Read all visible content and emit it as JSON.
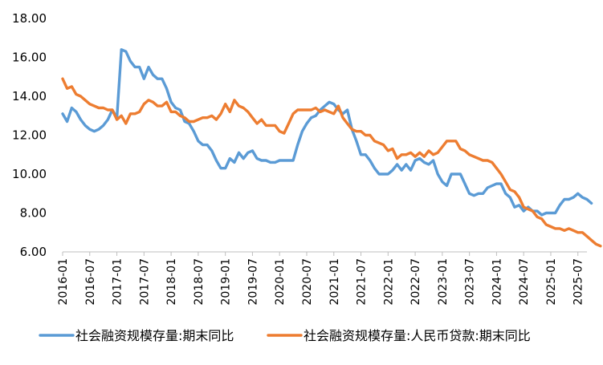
{
  "chart_data": {
    "type": "line",
    "title": "",
    "xlabel": "",
    "ylabel": "",
    "ylim": [
      6,
      18
    ],
    "yticks": [
      "6.00",
      "8.00",
      "10.00",
      "12.00",
      "14.00",
      "16.00",
      "18.00"
    ],
    "x_tick_labels": [
      "2016-01",
      "2016-07",
      "2017-01",
      "2017-07",
      "2018-01",
      "2018-07",
      "2019-01",
      "2019-07",
      "2020-01",
      "2020-07",
      "2021-01",
      "2021-07",
      "2022-01",
      "2022-07",
      "2023-01",
      "2023-07",
      "2024-01",
      "2024-07",
      "2025-01",
      "2025-07"
    ],
    "x_start": "2016-01",
    "x_end": "2025-09",
    "grid": false,
    "legend_position": "bottom",
    "series": [
      {
        "name": "社会融资规模存量:期末同比",
        "color": "#5B9BD5",
        "values": [
          13.1,
          12.7,
          13.4,
          13.2,
          12.8,
          12.5,
          12.3,
          12.2,
          12.3,
          12.5,
          12.8,
          13.3,
          12.9,
          16.4,
          16.3,
          15.8,
          15.5,
          15.5,
          14.9,
          15.5,
          15.1,
          14.9,
          14.9,
          14.4,
          13.7,
          13.4,
          13.3,
          12.7,
          12.6,
          12.2,
          11.7,
          11.5,
          11.5,
          11.2,
          10.7,
          10.3,
          10.3,
          10.8,
          10.6,
          11.1,
          10.8,
          11.1,
          11.2,
          10.8,
          10.7,
          10.7,
          10.6,
          10.6,
          10.7,
          10.7,
          10.7,
          10.7,
          11.5,
          12.2,
          12.6,
          12.9,
          13.0,
          13.3,
          13.5,
          13.7,
          13.6,
          13.3,
          13.1,
          13.3,
          12.3,
          11.7,
          11.0,
          11.0,
          10.7,
          10.3,
          10.0,
          10.0,
          10.0,
          10.2,
          10.5,
          10.2,
          10.5,
          10.2,
          10.7,
          10.8,
          10.6,
          10.5,
          10.7,
          10.0,
          9.6,
          9.4,
          10.0,
          10.0,
          10.0,
          9.5,
          9.0,
          8.9,
          9.0,
          9.0,
          9.3,
          9.4,
          9.5,
          9.5,
          9.0,
          8.8,
          8.3,
          8.4,
          8.1,
          8.3,
          8.1,
          8.1,
          7.9,
          8.0,
          8.0,
          8.0,
          8.4,
          8.7,
          8.7,
          8.8,
          9.0,
          8.8,
          8.7,
          8.5
        ]
      },
      {
        "name": "社会融资规模存量:人民币贷款:期末同比",
        "color": "#ED7D31",
        "values": [
          14.9,
          14.4,
          14.5,
          14.1,
          14.0,
          13.8,
          13.6,
          13.5,
          13.4,
          13.4,
          13.3,
          13.3,
          12.8,
          13.0,
          12.6,
          13.1,
          13.1,
          13.2,
          13.6,
          13.8,
          13.7,
          13.5,
          13.5,
          13.7,
          13.2,
          13.2,
          13.0,
          12.9,
          12.7,
          12.7,
          12.8,
          12.9,
          12.9,
          13.0,
          12.8,
          13.1,
          13.6,
          13.2,
          13.8,
          13.5,
          13.4,
          13.2,
          12.9,
          12.6,
          12.8,
          12.5,
          12.5,
          12.5,
          12.2,
          12.1,
          12.6,
          13.1,
          13.3,
          13.3,
          13.3,
          13.3,
          13.4,
          13.2,
          13.3,
          13.2,
          13.1,
          13.5,
          12.9,
          12.6,
          12.3,
          12.2,
          12.2,
          12.0,
          12.0,
          11.7,
          11.6,
          11.5,
          11.2,
          11.3,
          10.8,
          11.0,
          11.0,
          11.1,
          10.9,
          11.1,
          10.9,
          11.2,
          11.0,
          11.1,
          11.4,
          11.7,
          11.7,
          11.7,
          11.3,
          11.2,
          11.0,
          10.9,
          10.8,
          10.7,
          10.7,
          10.6,
          10.3,
          10.0,
          9.6,
          9.2,
          9.1,
          8.8,
          8.3,
          8.2,
          8.1,
          7.8,
          7.7,
          7.4,
          7.3,
          7.2,
          7.2,
          7.1,
          7.2,
          7.1,
          7.0,
          7.0,
          6.8,
          6.6,
          6.4,
          6.3
        ]
      }
    ]
  }
}
